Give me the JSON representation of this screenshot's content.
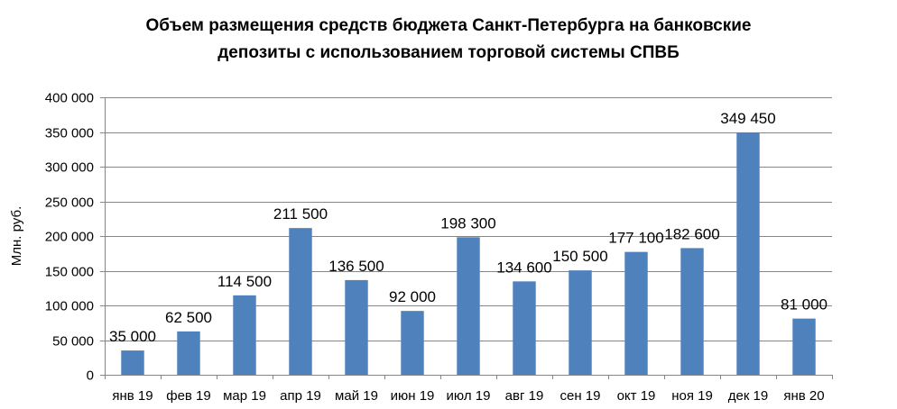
{
  "chart_data": {
    "type": "bar",
    "title_lines": [
      "Объем размещения средств бюджета Санкт-Петербурга на банковские",
      "депозиты с использованием торговой системы СПВБ"
    ],
    "xlabel": "",
    "ylabel": "Млн. руб.",
    "categories": [
      "янв 19",
      "фев 19",
      "мар 19",
      "апр 19",
      "май 19",
      "июн 19",
      "июл 19",
      "авг 19",
      "сен 19",
      "окт 19",
      "ноя 19",
      "дек 19",
      "янв 20"
    ],
    "values": [
      35000,
      62500,
      114500,
      211500,
      136500,
      92000,
      198300,
      134600,
      150500,
      177100,
      182600,
      349450,
      81000
    ],
    "data_labels": [
      "35 000",
      "62 500",
      "114 500",
      "211 500",
      "136 500",
      "92 000",
      "198 300",
      "134 600",
      "150 500",
      "177 100",
      "182 600",
      "349 450",
      "81 000"
    ],
    "y_ticks": [
      0,
      50000,
      100000,
      150000,
      200000,
      250000,
      300000,
      350000,
      400000
    ],
    "y_tick_labels": [
      "0",
      "50 000",
      "100 000",
      "150 000",
      "200 000",
      "250 000",
      "300 000",
      "350 000",
      "400 000"
    ],
    "ylim": [
      0,
      400000
    ],
    "grid": true,
    "legend": false,
    "bar_color": "#4f81bd",
    "grid_color": "#868686"
  }
}
